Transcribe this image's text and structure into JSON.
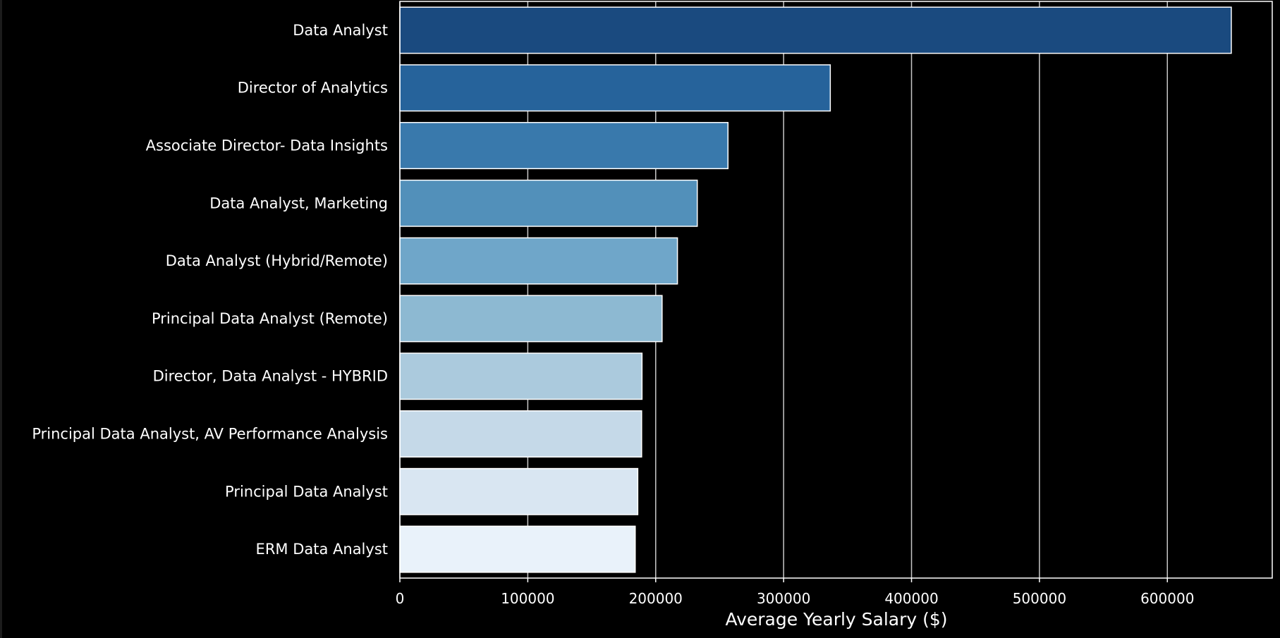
{
  "chart_data": {
    "type": "bar",
    "orientation": "horizontal",
    "categories": [
      "Data Analyst",
      "Director of Analytics",
      "Associate Director- Data Insights",
      "Data Analyst, Marketing",
      "Data Analyst (Hybrid/Remote)",
      "Principal Data Analyst (Remote)",
      "Director, Data Analyst - HYBRID",
      "Principal Data Analyst, AV Performance Analysis",
      "Principal Data Analyst",
      "ERM Data Analyst"
    ],
    "values": [
      650000,
      336500,
      256500,
      232500,
      217000,
      205000,
      189300,
      189000,
      186000,
      184000
    ],
    "colors": [
      "#1a4a7f",
      "#26639b",
      "#3979ac",
      "#5290ba",
      "#6fa6c9",
      "#8db9d2",
      "#abcadd",
      "#c5d9e8",
      "#d9e6f2",
      "#e9f2fa"
    ],
    "xlabel": "Average Yearly Salary ($)",
    "ylabel": "",
    "title": "",
    "xlim": [
      0,
      682000
    ],
    "xticks": [
      0,
      100000,
      200000,
      300000,
      400000,
      500000,
      600000
    ],
    "grid": "vertical",
    "legend": "none",
    "background": "#000000",
    "text_color": "#ffffff",
    "bar_edge_color": "#ffffff",
    "grid_color": "#c8c8c8"
  }
}
